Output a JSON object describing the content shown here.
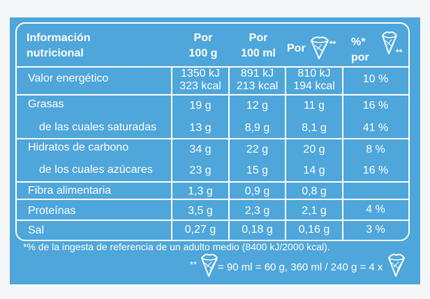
{
  "header": {
    "info_line1": "Información",
    "info_line2": "nutricional",
    "por100g_line1": "Por",
    "por100g_line2": "100 g",
    "por100ml_line1": "Por",
    "por100ml_line2": "100 ml",
    "por_cone": "Por",
    "stars": "**",
    "pct_line1": "%*",
    "pct_line2": "por",
    "pct_stars": "**"
  },
  "rows": [
    {
      "label": "Valor energético",
      "v100g_1": "1350 kJ",
      "v100g_2": "323 kcal",
      "v100ml_1": "891 kJ",
      "v100ml_2": "213 kcal",
      "vcone_1": "810 kJ",
      "vcone_2": "194 kcal",
      "pct": "10 %"
    },
    {
      "label": "Grasas",
      "v100g": "19 g",
      "v100ml": "12 g",
      "vcone": "11 g",
      "pct": "16 %"
    },
    {
      "label": "de las cuales saturadas",
      "v100g": "13 g",
      "v100ml": "8,9 g",
      "vcone": "8,1 g",
      "pct": "41 %"
    },
    {
      "label": "Hidratos de carbono",
      "v100g": "34 g",
      "v100ml": "22 g",
      "vcone": "20 g",
      "pct": "8 %"
    },
    {
      "label": "de los cuales azúcares",
      "v100g": "23 g",
      "v100ml": "15 g",
      "vcone": "14 g",
      "pct": "16 %"
    },
    {
      "label": "Fibra alimentaria",
      "v100g": "1,3 g",
      "v100ml": "0,9 g",
      "vcone": "0,8 g",
      "pct": ""
    },
    {
      "label": "Proteínas",
      "v100g": "3,5 g",
      "v100ml": "2,3 g",
      "vcone": "2,1 g",
      "pct": "4 %"
    },
    {
      "label": "Sal",
      "v100g": "0,27 g",
      "v100ml": "0,18 g",
      "vcone": "0,16 g",
      "pct": "3 %"
    }
  ],
  "footnote1": "*% de la ingesta de referencia de un adulto medio (8400 kJ/2000 kcal).",
  "footnote2_stars": "**",
  "footnote2_text": "= 90 ml = 60 g, 360 ml / 240 g = 4 x",
  "colors": {
    "panel": "#4ea6da",
    "text": "#ffffff"
  },
  "icons": [
    "ice-cream-cone-icon"
  ]
}
